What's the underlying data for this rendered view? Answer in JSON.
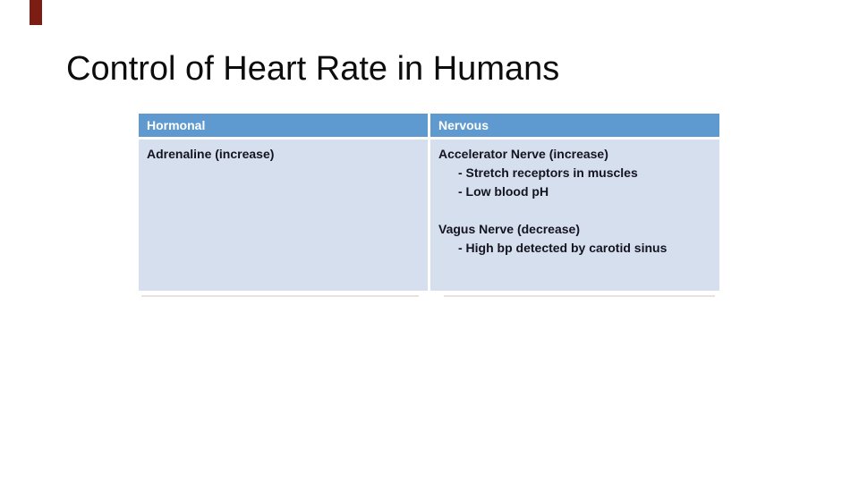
{
  "slide": {
    "title": "Control of Heart Rate in Humans",
    "background_color": "#ffffff",
    "title_color": "#0d0d0d",
    "accent_bar_color": "#7b1d12"
  },
  "table": {
    "header_bg": "#5e9ad0",
    "header_text_color": "#ffffff",
    "body_bg": "#d6dfee",
    "body_text_color": "#141420",
    "columns": [
      {
        "header": "Hormonal",
        "lines": [
          {
            "text": "Adrenaline (increase)",
            "indent": false
          }
        ]
      },
      {
        "header": "Nervous",
        "lines": [
          {
            "text": "Accelerator Nerve (increase)",
            "indent": false
          },
          {
            "text": "- Stretch receptors in muscles",
            "indent": true
          },
          {
            "text": "- Low blood pH",
            "indent": true
          },
          {
            "text": "",
            "indent": false
          },
          {
            "text": "Vagus Nerve (decrease)",
            "indent": false
          },
          {
            "text": "- High bp detected by carotid sinus",
            "indent": true
          }
        ]
      }
    ]
  }
}
